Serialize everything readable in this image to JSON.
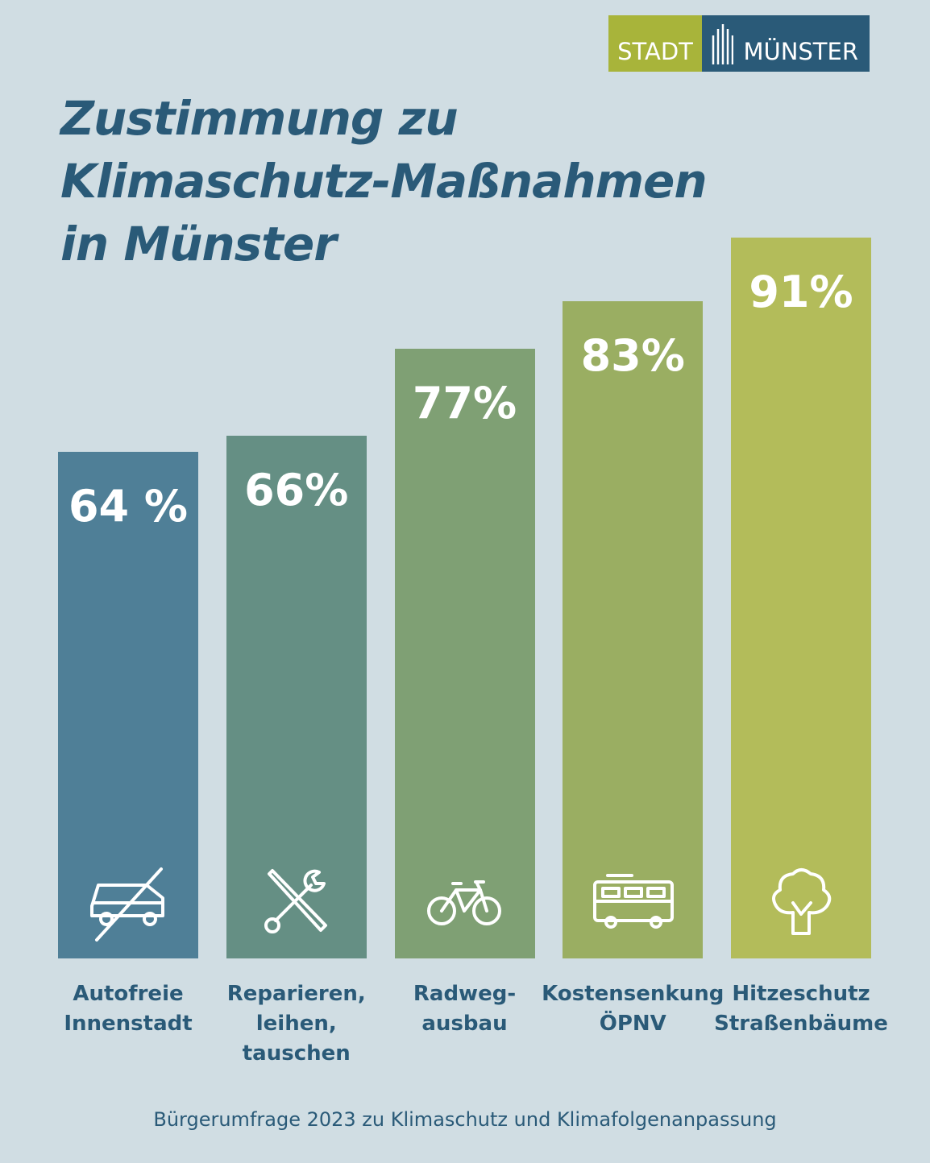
{
  "logo": {
    "left": "STADT",
    "right": "MÜNSTER"
  },
  "chart_data": {
    "type": "bar",
    "title": "Zustimmung zu\nKlimaschutz-Maßnahmen\nin Münster",
    "categories": [
      "Autofreie\nInnenstadt",
      "Reparieren,\nleihen,\ntauschen",
      "Radweg-\nausbau",
      "Kostensenkung\nÖPNV",
      "Hitzeschutz\nStraßenbäume"
    ],
    "values": [
      64,
      66,
      77,
      83,
      91
    ],
    "value_labels": [
      "64 %",
      "66%",
      "77%",
      "83%",
      "91%"
    ],
    "colors": [
      "#4f7f97",
      "#658f84",
      "#7fa074",
      "#9aae62",
      "#b3bc5a"
    ],
    "ylim": [
      0,
      100
    ],
    "source": "Bürgerumfrage 2023 zu Klimaschutz und Klimafolgenanpassung"
  }
}
